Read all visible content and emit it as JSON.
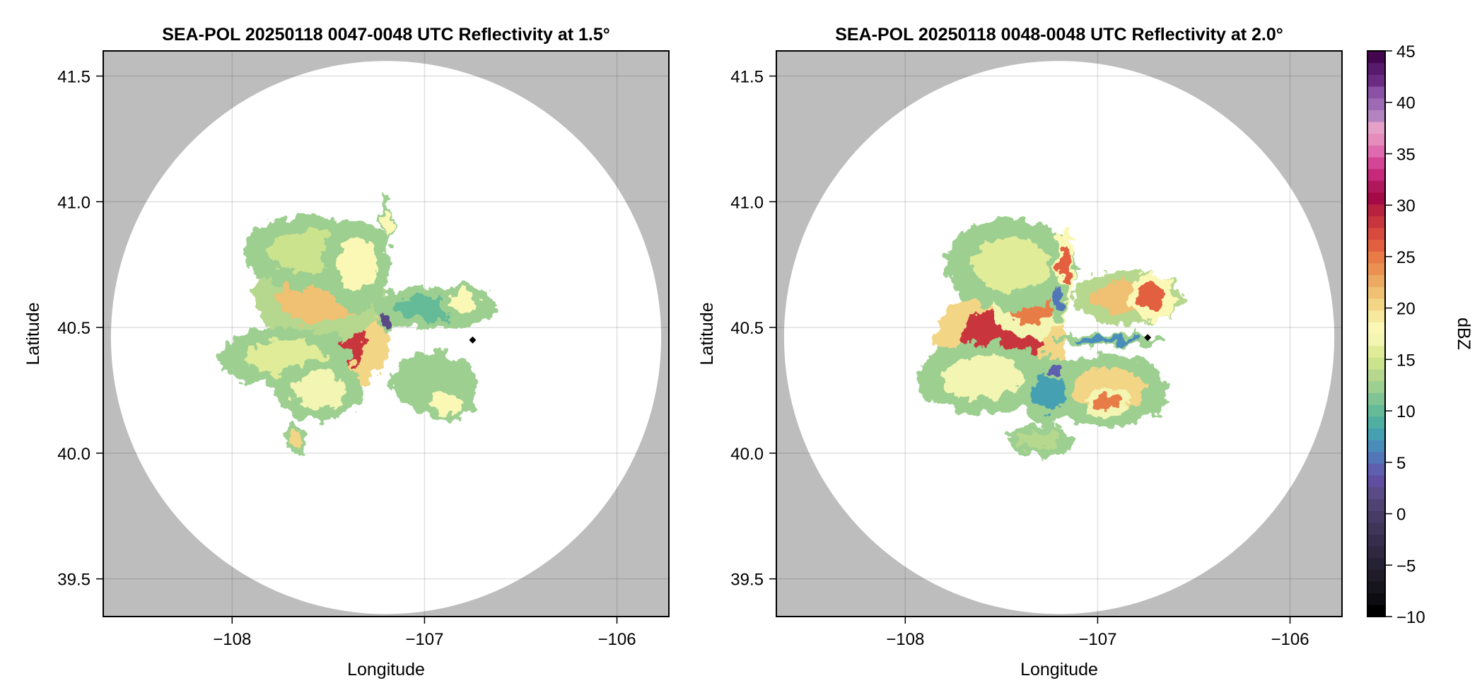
{
  "figure": {
    "background": "#ffffff",
    "masked_color": "#bdbdbd",
    "frame_color": "#000000",
    "grid_color": "#000000"
  },
  "chart_data": [
    {
      "type": "heatmap",
      "id": "left",
      "title": "SEA-POL 20250118 0047-0048 UTC Reflectivity at 1.5°",
      "xlabel": "Longitude",
      "ylabel": "Latitude",
      "xlim": [
        -108.67,
        -105.73
      ],
      "ylim": [
        39.35,
        41.6
      ],
      "xticks": [
        -108,
        -107,
        -106
      ],
      "xtick_labels": [
        "−108",
        "−107",
        "−106"
      ],
      "yticks": [
        39.5,
        40.0,
        40.5,
        41.0,
        41.5
      ],
      "ytick_labels": [
        "39.5",
        "40.0",
        "40.5",
        "41.0",
        "41.5"
      ],
      "grid": true,
      "radar_site": {
        "lon": -107.2,
        "lat": 40.46
      },
      "coverage_circle": {
        "center_lon": -107.2,
        "center_lat": 40.46,
        "radius_deg_lat": 1.1,
        "radius_deg_lon": 1.43
      },
      "marker": {
        "lon": -106.75,
        "lat": 40.45,
        "shape": "diamond",
        "color": "#000000"
      },
      "echo_regions": [
        {
          "lon": -107.5,
          "lat": 40.45,
          "dbz": 28,
          "rx": 0.28,
          "ry": 0.18
        },
        {
          "lon": -107.55,
          "lat": 40.62,
          "dbz": 22,
          "rx": 0.3,
          "ry": 0.15
        },
        {
          "lon": -107.72,
          "lat": 40.38,
          "dbz": 16,
          "rx": 0.3,
          "ry": 0.1
        },
        {
          "lon": -107.6,
          "lat": 40.8,
          "dbz": 15,
          "rx": 0.3,
          "ry": 0.12
        },
        {
          "lon": -107.35,
          "lat": 40.75,
          "dbz": 18,
          "rx": 0.15,
          "ry": 0.15
        },
        {
          "lon": -107.55,
          "lat": 40.25,
          "dbz": 17,
          "rx": 0.2,
          "ry": 0.1
        },
        {
          "lon": -106.95,
          "lat": 40.58,
          "dbz": 10,
          "rx": 0.28,
          "ry": 0.07
        },
        {
          "lon": -106.8,
          "lat": 40.6,
          "dbz": 18,
          "rx": 0.12,
          "ry": 0.06
        },
        {
          "lon": -106.95,
          "lat": 40.28,
          "dbz": 12,
          "rx": 0.2,
          "ry": 0.1
        },
        {
          "lon": -106.88,
          "lat": 40.2,
          "dbz": 18,
          "rx": 0.12,
          "ry": 0.06
        },
        {
          "lon": -107.2,
          "lat": 40.52,
          "dbz": 2,
          "rx": 0.03,
          "ry": 0.05
        },
        {
          "lon": -107.67,
          "lat": 40.06,
          "dbz": 20,
          "rx": 0.05,
          "ry": 0.05
        },
        {
          "lon": -107.2,
          "lat": 40.92,
          "dbz": 18,
          "rx": 0.03,
          "ry": 0.08
        }
      ]
    },
    {
      "type": "heatmap",
      "id": "right",
      "title": "SEA-POL 20250118 0048-0048 UTC Reflectivity at 2.0°",
      "xlabel": "Longitude",
      "ylabel": "Latitude",
      "xlim": [
        -108.67,
        -105.73
      ],
      "ylim": [
        39.35,
        41.6
      ],
      "xticks": [
        -108,
        -107,
        -106
      ],
      "xtick_labels": [
        "−108",
        "−107",
        "−106"
      ],
      "yticks": [
        39.5,
        40.0,
        40.5,
        41.0,
        41.5
      ],
      "ytick_labels": [
        "39.5",
        "40.0",
        "40.5",
        "41.0",
        "41.5"
      ],
      "grid": true,
      "radar_site": {
        "lon": -107.2,
        "lat": 40.46
      },
      "coverage_circle": {
        "center_lon": -107.2,
        "center_lat": 40.46,
        "radius_deg_lat": 1.1,
        "radius_deg_lon": 1.43
      },
      "marker": {
        "lon": -106.74,
        "lat": 40.46,
        "shape": "diamond",
        "color": "#000000"
      },
      "echo_regions": [
        {
          "lon": -107.5,
          "lat": 40.45,
          "dbz": 28,
          "rx": 0.3,
          "ry": 0.18
        },
        {
          "lon": -107.35,
          "lat": 40.6,
          "dbz": 25,
          "rx": 0.18,
          "ry": 0.12
        },
        {
          "lon": -107.45,
          "lat": 40.75,
          "dbz": 16,
          "rx": 0.3,
          "ry": 0.15
        },
        {
          "lon": -107.6,
          "lat": 40.3,
          "dbz": 17,
          "rx": 0.3,
          "ry": 0.12
        },
        {
          "lon": -106.85,
          "lat": 40.62,
          "dbz": 22,
          "rx": 0.25,
          "ry": 0.09
        },
        {
          "lon": -106.72,
          "lat": 40.62,
          "dbz": 26,
          "rx": 0.1,
          "ry": 0.08
        },
        {
          "lon": -106.95,
          "lat": 40.25,
          "dbz": 20,
          "rx": 0.28,
          "ry": 0.12
        },
        {
          "lon": -106.95,
          "lat": 40.2,
          "dbz": 25,
          "rx": 0.1,
          "ry": 0.05
        },
        {
          "lon": -107.25,
          "lat": 40.25,
          "dbz": 8,
          "rx": 0.12,
          "ry": 0.12
        },
        {
          "lon": -107.22,
          "lat": 40.33,
          "dbz": 4,
          "rx": 0.05,
          "ry": 0.04
        },
        {
          "lon": -106.95,
          "lat": 40.45,
          "dbz": 7,
          "rx": 0.25,
          "ry": 0.02
        },
        {
          "lon": -107.17,
          "lat": 40.75,
          "dbz": 26,
          "rx": 0.04,
          "ry": 0.12
        },
        {
          "lon": -107.2,
          "lat": 40.6,
          "dbz": 6,
          "rx": 0.04,
          "ry": 0.06
        },
        {
          "lon": -107.3,
          "lat": 40.05,
          "dbz": 14,
          "rx": 0.15,
          "ry": 0.05
        }
      ]
    }
  ],
  "colorbar": {
    "label": "dBZ",
    "range": [
      -10,
      45
    ],
    "ticks": [
      -10,
      -5,
      0,
      5,
      10,
      15,
      20,
      25,
      30,
      35,
      40,
      45
    ],
    "tick_labels": [
      "−10",
      "−5",
      "0",
      "5",
      "10",
      "15",
      "20",
      "25",
      "30",
      "35",
      "40",
      "45"
    ],
    "colors": [
      "#000000",
      "#0d0c11",
      "#16141c",
      "#1f1b29",
      "#262235",
      "#2e2841",
      "#352f4d",
      "#3e3659",
      "#463c66",
      "#4f4373",
      "#5a4a86",
      "#604ea0",
      "#5f5fb0",
      "#5276b8",
      "#4a8dba",
      "#45a0b2",
      "#4fafa0",
      "#65bb98",
      "#80c494",
      "#9dcf90",
      "#b5d78e",
      "#cce38e",
      "#e1ec98",
      "#f3f5b2",
      "#fbf8b6",
      "#f6e89c",
      "#f3d586",
      "#f0c073",
      "#eca960",
      "#ea9151",
      "#e87b46",
      "#e2603f",
      "#d74a3d",
      "#c9353d",
      "#b8223f",
      "#a40a45",
      "#b0185c",
      "#c6287a",
      "#d44596",
      "#e06aaf",
      "#e58cbd",
      "#e6a1c9",
      "#b384c0",
      "#9d6ab3",
      "#8a51a5",
      "#6b2b83",
      "#581a6c",
      "#43064f"
    ]
  }
}
